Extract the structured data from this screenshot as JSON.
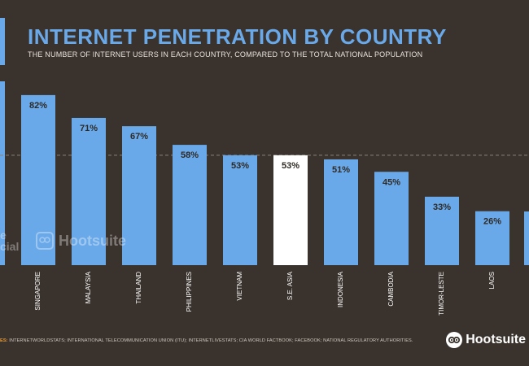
{
  "header": {
    "title": "INTERNET PENETRATION BY COUNTRY",
    "subtitle": "THE NUMBER OF INTERNET USERS IN EACH COUNTRY, COMPARED TO THE TOTAL NATIONAL POPULATION"
  },
  "colors": {
    "background": "#3a332d",
    "bar": "#6aa9e9",
    "highlight_bar": "#ffffff",
    "title": "#6aa9e9"
  },
  "chart_data": {
    "type": "bar",
    "categories": [
      "SINGAPORE",
      "MALAYSIA",
      "THAILAND",
      "PHILIPPINES",
      "VIETNAM",
      "S.E. ASIA",
      "INDONESIA",
      "CAMBODIA",
      "TIMOR-LESTE",
      "LAOS"
    ],
    "values": [
      82,
      71,
      67,
      58,
      53,
      53,
      51,
      45,
      33,
      26
    ],
    "labels": [
      "82%",
      "71%",
      "67%",
      "58%",
      "53%",
      "53%",
      "51%",
      "45%",
      "33%",
      "26%"
    ],
    "highlight": "S.E. ASIA",
    "reference_line": 53,
    "unit": "%",
    "title": "INTERNET PENETRATION BY COUNTRY",
    "legend": "none",
    "grid": false
  },
  "footer": {
    "source_label": "ES:",
    "source_text": "INTERNETWORLDSTATS; INTERNATIONAL TELECOMMUNICATION UNION (ITU); INTERNETLIVESTATS; CIA WORLD FACTBOOK; FACEBOOK; NATIONAL REGULATORY AUTHORITIES.",
    "brand": "Hootsuite",
    "watermark_brand": "Hootsuite",
    "watermark_left": "e\ncial"
  },
  "icons": {
    "brand_icon": "owl-icon"
  }
}
